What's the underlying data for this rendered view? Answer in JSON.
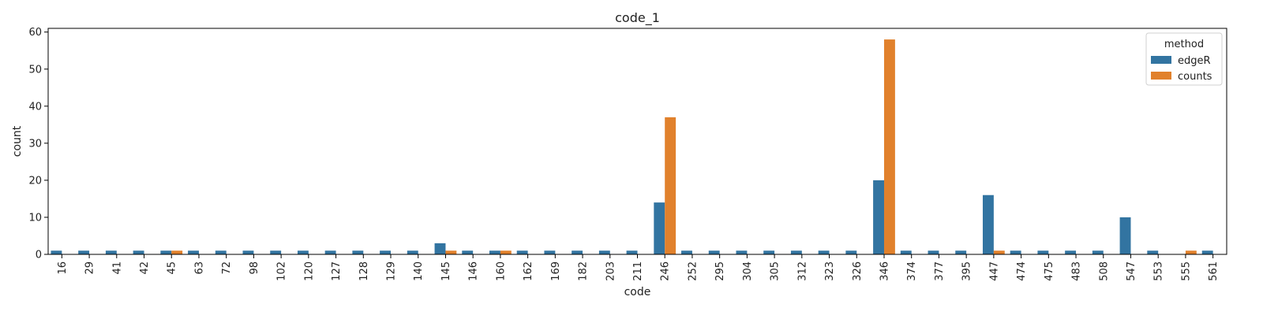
{
  "chart_data": {
    "type": "bar",
    "title": "code_1",
    "xlabel": "code",
    "ylabel": "count",
    "ylim": [
      0,
      61
    ],
    "yticks": [
      0,
      10,
      20,
      30,
      40,
      50,
      60
    ],
    "grid": false,
    "legend": {
      "title": "method",
      "placement": "top-right"
    },
    "categories": [
      "16",
      "29",
      "41",
      "42",
      "45",
      "63",
      "72",
      "98",
      "102",
      "120",
      "127",
      "128",
      "129",
      "140",
      "145",
      "146",
      "160",
      "162",
      "169",
      "182",
      "203",
      "211",
      "246",
      "252",
      "295",
      "304",
      "305",
      "312",
      "323",
      "326",
      "346",
      "374",
      "377",
      "395",
      "447",
      "474",
      "475",
      "483",
      "508",
      "547",
      "553",
      "555",
      "561"
    ],
    "series": [
      {
        "name": "edgeR",
        "color": "#3274a1",
        "values": [
          1,
          1,
          1,
          1,
          1,
          1,
          1,
          1,
          1,
          1,
          1,
          1,
          1,
          1,
          3,
          1,
          1,
          1,
          1,
          1,
          1,
          1,
          14,
          1,
          1,
          1,
          1,
          1,
          1,
          1,
          20,
          1,
          1,
          1,
          16,
          1,
          1,
          1,
          1,
          10,
          1,
          0,
          1
        ]
      },
      {
        "name": "counts",
        "color": "#e1812c",
        "values": [
          0,
          0,
          0,
          0,
          1,
          0,
          0,
          0,
          0,
          0,
          0,
          0,
          0,
          0,
          1,
          0,
          1,
          0,
          0,
          0,
          0,
          0,
          37,
          0,
          0,
          0,
          0,
          0,
          0,
          0,
          58,
          0,
          0,
          0,
          1,
          0,
          0,
          0,
          0,
          0,
          0,
          1,
          0
        ]
      }
    ]
  }
}
